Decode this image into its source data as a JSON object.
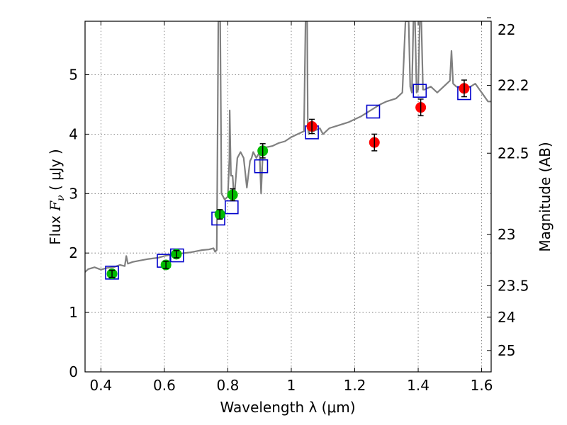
{
  "chart_data": {
    "type": "scatter",
    "xlabel": "Wavelength  λ (μm)",
    "ylabel": "Flux  F_ν  ( μJy )",
    "ylabel_parts": {
      "prefix": "Flux  ",
      "symbol": "F",
      "subscript": "ν",
      "unit": "  ( μJy )"
    },
    "y2label": "Magnitude (AB)",
    "xlim": [
      0.35,
      1.63
    ],
    "ylim": [
      0,
      5.9
    ],
    "grid": true,
    "xticks": [
      {
        "value": 0.4,
        "label": "0.4"
      },
      {
        "value": 0.6,
        "label": "0.6"
      },
      {
        "value": 0.8,
        "label": "0.8"
      },
      {
        "value": 1.0,
        "label": "1"
      },
      {
        "value": 1.2,
        "label": "1.2"
      },
      {
        "value": 1.4,
        "label": "1.4"
      },
      {
        "value": 1.6,
        "label": "1.6"
      }
    ],
    "yticks": [
      {
        "value": 0,
        "label": "0"
      },
      {
        "value": 1,
        "label": "1"
      },
      {
        "value": 2,
        "label": "2"
      },
      {
        "value": 3,
        "label": "3"
      },
      {
        "value": 4,
        "label": "4"
      },
      {
        "value": 5,
        "label": "5"
      }
    ],
    "y2ticks": [
      {
        "label": "22",
        "flux": 5.96
      },
      {
        "label": "22.2",
        "flux": 4.82
      },
      {
        "label": "22.5",
        "flux": 3.68
      },
      {
        "label": "23",
        "flux": 2.31
      },
      {
        "label": "23.5",
        "flux": 1.45
      },
      {
        "label": "24",
        "flux": 0.92
      },
      {
        "label": "25",
        "flux": 0.36
      }
    ],
    "colors": {
      "model": "#808080",
      "green": "#00bb00",
      "red": "#ff0000",
      "box": "#0000cc"
    },
    "series": [
      {
        "kind": "model_spectrum",
        "x": [
          0.35,
          0.36,
          0.38,
          0.4,
          0.42,
          0.44,
          0.46,
          0.475,
          0.48,
          0.485,
          0.5,
          0.52,
          0.55,
          0.58,
          0.6,
          0.62,
          0.65,
          0.68,
          0.7,
          0.72,
          0.74,
          0.755,
          0.76,
          0.765,
          0.766,
          0.77,
          0.772,
          0.774,
          0.776,
          0.78,
          0.79,
          0.8,
          0.805,
          0.806,
          0.808,
          0.81,
          0.815,
          0.82,
          0.83,
          0.84,
          0.85,
          0.86,
          0.87,
          0.875,
          0.88,
          0.89,
          0.9,
          0.905,
          0.91,
          0.915,
          0.92,
          0.94,
          0.96,
          0.98,
          1.0,
          1.02,
          1.04,
          1.045,
          1.048,
          1.05,
          1.052,
          1.055,
          1.06,
          1.07,
          1.09,
          1.1,
          1.12,
          1.15,
          1.18,
          1.2,
          1.22,
          1.25,
          1.28,
          1.3,
          1.33,
          1.35,
          1.36,
          1.365,
          1.37,
          1.375,
          1.38,
          1.385,
          1.39,
          1.395,
          1.4,
          1.405,
          1.41,
          1.415,
          1.42,
          1.44,
          1.46,
          1.48,
          1.5,
          1.505,
          1.51,
          1.52,
          1.55,
          1.58,
          1.6,
          1.62,
          1.63
        ],
        "y": [
          1.68,
          1.73,
          1.76,
          1.72,
          1.75,
          1.76,
          1.8,
          1.78,
          1.95,
          1.82,
          1.85,
          1.87,
          1.9,
          1.92,
          1.95,
          1.97,
          1.99,
          2.01,
          2.03,
          2.05,
          2.06,
          2.08,
          2.02,
          2.05,
          2.55,
          5.9,
          5.9,
          5.9,
          5.9,
          3.0,
          2.9,
          2.95,
          3.6,
          4.4,
          3.8,
          3.3,
          3.3,
          2.9,
          3.6,
          3.7,
          3.6,
          3.1,
          3.55,
          3.6,
          3.7,
          3.6,
          3.7,
          3.0,
          3.65,
          3.75,
          3.78,
          3.8,
          3.85,
          3.88,
          3.95,
          4.0,
          4.05,
          5.9,
          5.9,
          5.9,
          4.1,
          4.0,
          4.1,
          4.05,
          4.1,
          4.0,
          4.1,
          4.15,
          4.2,
          4.25,
          4.3,
          4.4,
          4.5,
          4.55,
          4.6,
          4.7,
          5.9,
          5.9,
          5.9,
          4.8,
          4.7,
          5.9,
          5.9,
          4.7,
          4.75,
          5.9,
          5.9,
          4.75,
          4.75,
          4.8,
          4.7,
          4.8,
          4.9,
          5.4,
          4.85,
          4.8,
          4.75,
          4.85,
          4.7,
          4.55,
          4.55
        ]
      },
      {
        "kind": "green_points",
        "x": [
          0.435,
          0.605,
          0.638,
          0.775,
          0.815,
          0.91
        ],
        "y": [
          1.65,
          1.8,
          1.98,
          2.65,
          2.98,
          3.72
        ],
        "err": [
          0.06,
          0.06,
          0.06,
          0.08,
          0.1,
          0.12
        ]
      },
      {
        "kind": "red_points",
        "x": [
          1.065,
          1.262,
          1.408,
          1.545
        ],
        "y": [
          4.13,
          3.86,
          4.45,
          4.77
        ],
        "err": [
          0.12,
          0.14,
          0.14,
          0.14
        ]
      },
      {
        "kind": "model_boxes",
        "x": [
          0.435,
          0.598,
          0.64,
          0.77,
          0.812,
          0.905,
          1.065,
          1.258,
          1.405,
          1.545
        ],
        "y": [
          1.67,
          1.87,
          1.96,
          2.58,
          2.77,
          3.46,
          4.03,
          4.38,
          4.73,
          4.69
        ]
      }
    ]
  }
}
